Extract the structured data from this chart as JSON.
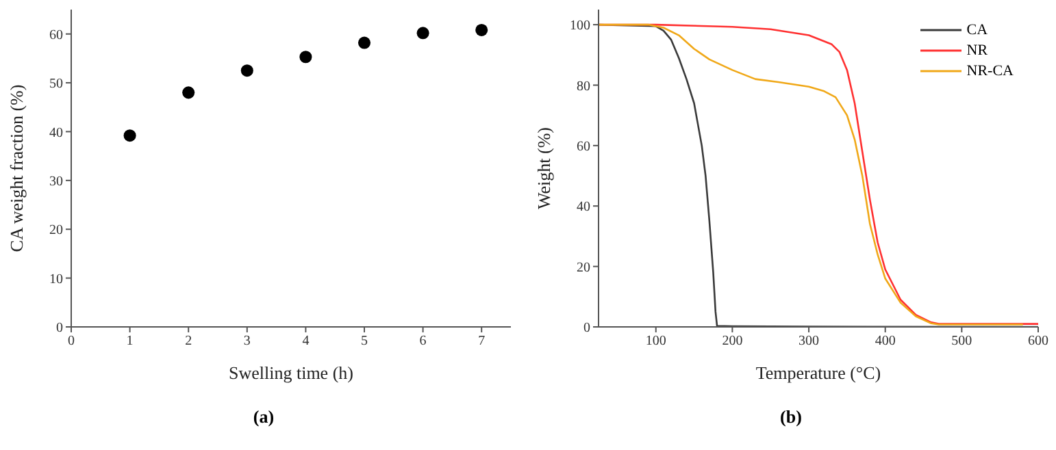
{
  "chart_data": [
    {
      "type": "scatter",
      "xlabel": "Swelling time (h)",
      "ylabel": "CA weight fraction (%)",
      "annotations": [
        "(a)"
      ],
      "x": [
        1,
        2,
        3,
        4,
        5,
        6,
        7
      ],
      "values": [
        39.2,
        48,
        52.5,
        55.3,
        58.2,
        60.2,
        60.8
      ],
      "color": "#000000",
      "marker": "circle",
      "xlim": [
        0,
        7.5
      ],
      "xticks": [
        0,
        1,
        2,
        3,
        4,
        5,
        6,
        7
      ],
      "ylim": [
        0,
        65
      ],
      "yticks": [
        0,
        10,
        20,
        30,
        40,
        50,
        60
      ],
      "grid": false,
      "legend": false
    },
    {
      "type": "line",
      "xlabel": "Temperature (°C)",
      "ylabel": "Weight (%)",
      "annotations": [
        "(b)"
      ],
      "xlim": [
        25,
        600
      ],
      "xticks": [
        100,
        200,
        300,
        400,
        500,
        600
      ],
      "ylim": [
        0,
        105
      ],
      "yticks": [
        0,
        20,
        40,
        60,
        80,
        100
      ],
      "grid": false,
      "legend": "top right",
      "marker": "none",
      "line_style": "solid",
      "series": [
        {
          "name": "CA",
          "color": "#3a3a3a",
          "x": [
            25,
            100,
            110,
            120,
            130,
            140,
            150,
            160,
            165,
            170,
            175,
            178,
            180,
            200,
            300,
            600
          ],
          "values": [
            100,
            99.5,
            98,
            95,
            89,
            82,
            74,
            60,
            50,
            35,
            18,
            5,
            0.3,
            0.2,
            0.1,
            0
          ]
        },
        {
          "name": "NR",
          "color": "#ff3030",
          "x": [
            25,
            100,
            200,
            250,
            300,
            330,
            340,
            350,
            360,
            370,
            380,
            390,
            400,
            420,
            440,
            460,
            470,
            500,
            600
          ],
          "values": [
            100,
            100,
            99.3,
            98.5,
            96.5,
            93.5,
            91,
            85,
            74,
            58,
            42,
            28,
            19,
            9,
            4,
            1.5,
            1,
            1,
            1
          ]
        },
        {
          "name": "NR-CA",
          "color": "#f0a818",
          "x": [
            25,
            90,
            110,
            130,
            150,
            170,
            200,
            230,
            260,
            300,
            320,
            335,
            350,
            360,
            370,
            380,
            390,
            400,
            420,
            440,
            460,
            470,
            500,
            580
          ],
          "values": [
            100,
            100,
            99,
            96.5,
            92,
            88.5,
            85,
            82,
            81,
            79.5,
            78,
            76,
            70,
            62,
            50,
            34,
            24,
            16,
            8,
            3.5,
            1.2,
            0.8,
            0.8,
            0.8
          ]
        }
      ]
    }
  ]
}
